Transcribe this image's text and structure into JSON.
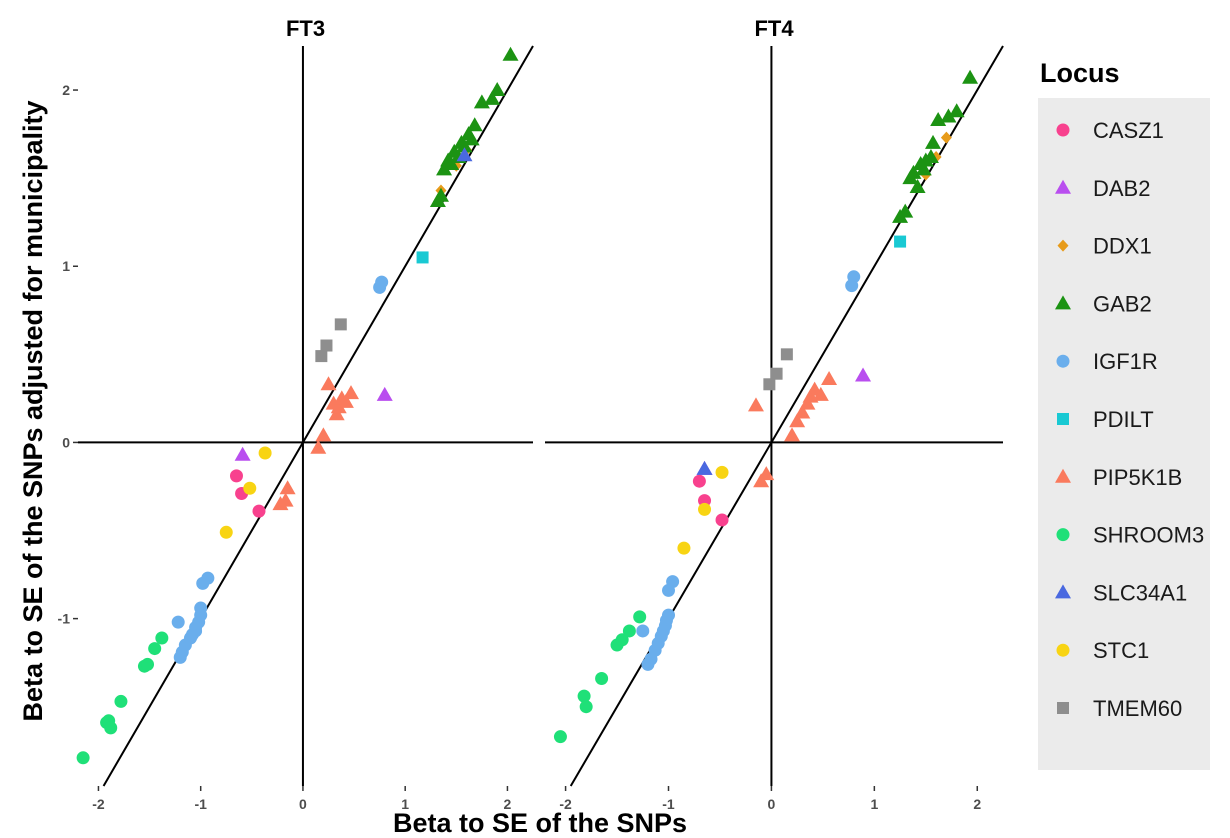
{
  "chart_data": {
    "type": "scatter",
    "xlabel": "Beta to SE of the SNPs",
    "ylabel": "Beta to SE of the SNPs adjusted for municipality",
    "legend_title": "Locus",
    "legend_position": "right",
    "grid": false,
    "xlim": [
      -2.2,
      2.25
    ],
    "ylim": [
      -1.95,
      2.25
    ],
    "x_ticks": [
      -2,
      -1,
      0,
      1,
      2
    ],
    "x_tick_labels": [
      "-2",
      "-1",
      "0",
      "1",
      "2"
    ],
    "y_ticks": [
      -1,
      0,
      1,
      2
    ],
    "y_tick_labels": [
      "-1",
      "0",
      "1",
      "2"
    ],
    "reference_lines": [
      "x = 0",
      "y = 0",
      "y = x"
    ],
    "series_styles": [
      {
        "name": "CASZ1",
        "color": "#F8418E",
        "shape": "circle"
      },
      {
        "name": "DAB2",
        "color": "#B94EEF",
        "shape": "triangle"
      },
      {
        "name": "DDX1",
        "color": "#E79B1A",
        "shape": "diamond"
      },
      {
        "name": "GAB2",
        "color": "#1C9313",
        "shape": "triangle"
      },
      {
        "name": "IGF1R",
        "color": "#6AAEEC",
        "shape": "circle"
      },
      {
        "name": "PDILT",
        "color": "#19C9D3",
        "shape": "square"
      },
      {
        "name": "PIP5K1B",
        "color": "#FA7A5D",
        "shape": "triangle"
      },
      {
        "name": "SHROOM3",
        "color": "#1FE078",
        "shape": "circle"
      },
      {
        "name": "SLC34A1",
        "color": "#4A69E0",
        "shape": "triangle"
      },
      {
        "name": "STC1",
        "color": "#F8D413",
        "shape": "circle"
      },
      {
        "name": "TMEM60",
        "color": "#8E8E8E",
        "shape": "square"
      }
    ],
    "panels": [
      {
        "title": "FT3",
        "series": [
          {
            "name": "CASZ1",
            "points": [
              [
                -0.65,
                -0.19
              ],
              [
                -0.6,
                -0.29
              ],
              [
                -0.43,
                -0.39
              ]
            ]
          },
          {
            "name": "DAB2",
            "points": [
              [
                -0.59,
                -0.07
              ],
              [
                0.8,
                0.27
              ]
            ]
          },
          {
            "name": "DDX1",
            "points": [
              [
                1.35,
                1.43
              ],
              [
                1.5,
                1.57
              ],
              [
                1.6,
                1.66
              ]
            ]
          },
          {
            "name": "GAB2",
            "points": [
              [
                1.32,
                1.37
              ],
              [
                1.35,
                1.4
              ],
              [
                1.38,
                1.55
              ],
              [
                1.42,
                1.6
              ],
              [
                1.45,
                1.58
              ],
              [
                1.48,
                1.65
              ],
              [
                1.52,
                1.62
              ],
              [
                1.55,
                1.7
              ],
              [
                1.58,
                1.68
              ],
              [
                1.62,
                1.75
              ],
              [
                1.65,
                1.72
              ],
              [
                1.68,
                1.8
              ],
              [
                1.75,
                1.93
              ],
              [
                1.85,
                1.95
              ],
              [
                1.9,
                2.0
              ],
              [
                2.03,
                2.2
              ]
            ]
          },
          {
            "name": "IGF1R",
            "points": [
              [
                0.75,
                0.88
              ],
              [
                0.77,
                0.91
              ],
              [
                -0.93,
                -0.77
              ],
              [
                -0.98,
                -0.8
              ],
              [
                -1.0,
                -0.94
              ],
              [
                -1.0,
                -0.98
              ],
              [
                -1.02,
                -1.02
              ],
              [
                -1.05,
                -1.05
              ],
              [
                -1.05,
                -1.07
              ],
              [
                -1.08,
                -1.09
              ],
              [
                -1.1,
                -1.11
              ],
              [
                -1.15,
                -1.15
              ],
              [
                -1.18,
                -1.19
              ],
              [
                -1.2,
                -1.22
              ],
              [
                -1.22,
                -1.02
              ]
            ]
          },
          {
            "name": "PDILT",
            "points": [
              [
                1.17,
                1.05
              ]
            ]
          },
          {
            "name": "PIP5K1B",
            "points": [
              [
                0.15,
                -0.03
              ],
              [
                0.2,
                0.04
              ],
              [
                0.25,
                0.33
              ],
              [
                0.3,
                0.22
              ],
              [
                0.33,
                0.16
              ],
              [
                0.35,
                0.2
              ],
              [
                0.38,
                0.25
              ],
              [
                0.42,
                0.23
              ],
              [
                0.47,
                0.28
              ],
              [
                -0.17,
                -0.33
              ],
              [
                -0.22,
                -0.35
              ],
              [
                -0.15,
                -0.26
              ]
            ]
          },
          {
            "name": "SHROOM3",
            "points": [
              [
                -2.15,
                -1.79
              ],
              [
                -1.92,
                -1.59
              ],
              [
                -1.9,
                -1.58
              ],
              [
                -1.88,
                -1.62
              ],
              [
                -1.78,
                -1.47
              ],
              [
                -1.55,
                -1.27
              ],
              [
                -1.52,
                -1.26
              ],
              [
                -1.45,
                -1.17
              ],
              [
                -1.38,
                -1.11
              ]
            ]
          },
          {
            "name": "SLC34A1",
            "points": [
              [
                1.58,
                1.63
              ]
            ]
          },
          {
            "name": "STC1",
            "points": [
              [
                -0.37,
                -0.06
              ],
              [
                -0.52,
                -0.26
              ],
              [
                -0.75,
                -0.51
              ]
            ]
          },
          {
            "name": "TMEM60",
            "points": [
              [
                0.18,
                0.49
              ],
              [
                0.23,
                0.55
              ],
              [
                0.37,
                0.67
              ]
            ]
          }
        ]
      },
      {
        "title": "FT4",
        "series": [
          {
            "name": "CASZ1",
            "points": [
              [
                -0.7,
                -0.22
              ],
              [
                -0.65,
                -0.33
              ],
              [
                -0.48,
                -0.44
              ]
            ]
          },
          {
            "name": "DAB2",
            "points": [
              [
                -0.65,
                -0.15
              ],
              [
                0.89,
                0.38
              ]
            ]
          },
          {
            "name": "DDX1",
            "points": [
              [
                1.5,
                1.52
              ],
              [
                1.6,
                1.62
              ],
              [
                1.7,
                1.73
              ]
            ]
          },
          {
            "name": "GAB2",
            "points": [
              [
                1.25,
                1.28
              ],
              [
                1.3,
                1.31
              ],
              [
                1.35,
                1.5
              ],
              [
                1.38,
                1.53
              ],
              [
                1.42,
                1.45
              ],
              [
                1.45,
                1.58
              ],
              [
                1.48,
                1.55
              ],
              [
                1.5,
                1.6
              ],
              [
                1.55,
                1.62
              ],
              [
                1.57,
                1.7
              ],
              [
                1.62,
                1.83
              ],
              [
                1.72,
                1.85
              ],
              [
                1.8,
                1.88
              ],
              [
                1.93,
                2.07
              ]
            ]
          },
          {
            "name": "IGF1R",
            "points": [
              [
                0.78,
                0.89
              ],
              [
                0.8,
                0.94
              ],
              [
                -0.96,
                -0.79
              ],
              [
                -1.0,
                -0.84
              ],
              [
                -1.0,
                -0.98
              ],
              [
                -1.02,
                -1.01
              ],
              [
                -1.03,
                -1.04
              ],
              [
                -1.05,
                -1.07
              ],
              [
                -1.07,
                -1.1
              ],
              [
                -1.1,
                -1.14
              ],
              [
                -1.13,
                -1.18
              ],
              [
                -1.17,
                -1.23
              ],
              [
                -1.2,
                -1.26
              ],
              [
                -1.25,
                -1.07
              ]
            ]
          },
          {
            "name": "PDILT",
            "points": [
              [
                1.25,
                1.14
              ]
            ]
          },
          {
            "name": "PIP5K1B",
            "points": [
              [
                -0.05,
                -0.18
              ],
              [
                -0.1,
                -0.22
              ],
              [
                0.2,
                0.04
              ],
              [
                0.25,
                0.12
              ],
              [
                0.3,
                0.17
              ],
              [
                0.35,
                0.22
              ],
              [
                0.38,
                0.26
              ],
              [
                0.42,
                0.3
              ],
              [
                0.48,
                0.27
              ],
              [
                0.56,
                0.36
              ],
              [
                -0.15,
                0.21
              ]
            ]
          },
          {
            "name": "SHROOM3",
            "points": [
              [
                -2.05,
                -1.67
              ],
              [
                -1.82,
                -1.44
              ],
              [
                -1.8,
                -1.5
              ],
              [
                -1.65,
                -1.34
              ],
              [
                -1.5,
                -1.15
              ],
              [
                -1.45,
                -1.12
              ],
              [
                -1.38,
                -1.07
              ],
              [
                -1.28,
                -0.99
              ]
            ]
          },
          {
            "name": "SLC34A1",
            "points": [
              [
                -0.65,
                -0.15
              ]
            ]
          },
          {
            "name": "STC1",
            "points": [
              [
                -0.48,
                -0.17
              ],
              [
                -0.65,
                -0.38
              ],
              [
                -0.85,
                -0.6
              ]
            ]
          },
          {
            "name": "TMEM60",
            "points": [
              [
                -0.02,
                0.33
              ],
              [
                0.05,
                0.39
              ],
              [
                0.15,
                0.5
              ]
            ]
          }
        ]
      }
    ]
  }
}
